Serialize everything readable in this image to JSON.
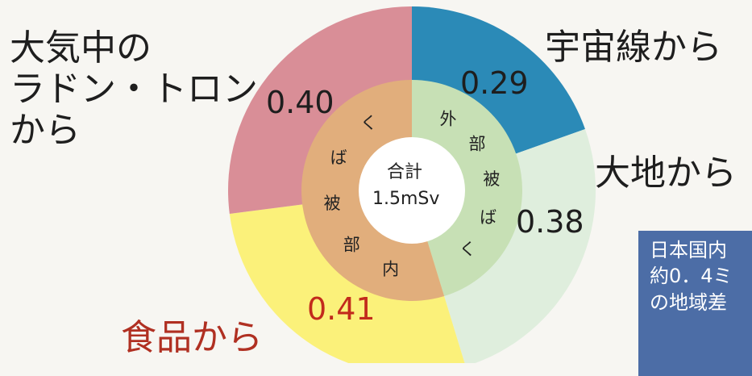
{
  "chart_data": {
    "type": "pie",
    "title": "",
    "outer_categories": [
      "宇宙線から",
      "大地から",
      "食品から",
      "大気中の\nラドン・トロン\nから"
    ],
    "outer_values": [
      0.29,
      0.38,
      0.41,
      0.4
    ],
    "outer_value_labels": [
      "0.29",
      "0.38",
      "0.41",
      "0.40"
    ],
    "outer_colors": [
      "#2b8ab7",
      "#dfeedd",
      "#fbf17a",
      "#d98e97"
    ],
    "inner_categories": [
      "外部被ばく",
      "内部被ばく"
    ],
    "inner_values": [
      0.67,
      0.81
    ],
    "inner_colors": [
      "#c7e0b5",
      "#e1ae7c"
    ],
    "center_label": "合計",
    "center_value": "1.5mSv"
  },
  "note": {
    "lines": [
      "日本国内",
      "約0．4ミ",
      "の地域差"
    ]
  }
}
